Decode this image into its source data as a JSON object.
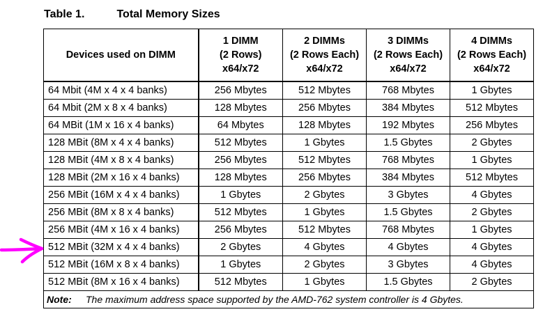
{
  "caption": {
    "number": "Table 1.",
    "title": "Total Memory Sizes"
  },
  "table": {
    "headers": [
      [
        "Devices used on DIMM"
      ],
      [
        "1 DIMM",
        "(2 Rows)",
        "x64/x72"
      ],
      [
        "2 DIMMs",
        "(2 Rows Each)",
        "x64/x72"
      ],
      [
        "3 DIMMs",
        "(2 Rows Each)",
        "x64/x72"
      ],
      [
        "4 DIMMs",
        "(2 Rows Each)",
        "x64/x72"
      ]
    ],
    "rows": [
      [
        "64 Mbit (4M x 4 x 4 banks)",
        "256 Mbytes",
        "512 Mbytes",
        "768 Mbytes",
        "1 Gbytes"
      ],
      [
        "64 Mbit (2M x 8 x 4 banks)",
        "128 Mbytes",
        "256 Mbytes",
        "384 Mbytes",
        "512 Mbytes"
      ],
      [
        "64 MBit (1M x 16 x 4 banks)",
        "64 Mbytes",
        "128 Mbytes",
        "192 Mbytes",
        "256 Mbytes"
      ],
      [
        "128 MBit (8M x 4 x 4 banks)",
        "512 Mbytes",
        "1 Gbytes",
        "1.5 Gbytes",
        "2 Gbytes"
      ],
      [
        "128 MBit (4M x 8 x 4 banks)",
        "256 Mbytes",
        "512 Mbytes",
        "768 Mbytes",
        "1 Gbytes"
      ],
      [
        "128 MBit (2M x 16 x 4 banks)",
        "128 Mbytes",
        "256 Mbytes",
        "384 Mbytes",
        "512 Mbytes"
      ],
      [
        "256 MBit (16M x 4 x 4 banks)",
        "1 Gbytes",
        "2 Gbytes",
        "3 Gbytes",
        "4 Gbytes"
      ],
      [
        "256 MBit (8M x 8 x 4 banks)",
        "512 Mbytes",
        "1 Gbytes",
        "1.5 Gbytes",
        "2 Gbytes"
      ],
      [
        "256 MBit (4M x 16 x 4 banks)",
        "256 Mbytes",
        "512 Mbytes",
        "768 Mbytes",
        "1 Gbytes"
      ],
      [
        "512 MBit (32M x 4 x 4 banks)",
        "2 Gbytes",
        "4 Gbytes",
        "4 Gbytes",
        "4 Gbytes"
      ],
      [
        "512 MBit (16M x 8 x 4 banks)",
        "1 Gbytes",
        "2 Gbytes",
        "3 Gbytes",
        "4 Gbytes"
      ],
      [
        "512 MBit (8M x 16 x 4 banks)",
        "512 Mbytes",
        "1 Gbytes",
        "1.5 Gbytes",
        "2 Gbytes"
      ]
    ],
    "note": {
      "label": "Note:",
      "text": "The maximum address space supported by the AMD-762 system controller is 4 Gbytes."
    }
  },
  "annotation": {
    "arrow_color": "#ff00ff",
    "points_to_row": 9
  }
}
